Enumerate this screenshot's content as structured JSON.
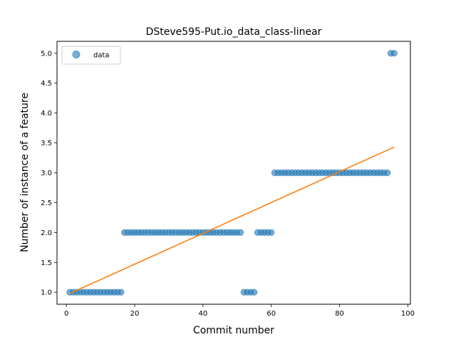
{
  "chart_data": {
    "type": "scatter",
    "title": "DSteve595-Put.io_data_class-linear",
    "xlabel": "Commit number",
    "ylabel": "Number of instance of a feature",
    "xlim": [
      -2.75,
      100.75
    ],
    "ylim": [
      0.8,
      5.2
    ],
    "xticks": [
      0,
      20,
      40,
      60,
      80,
      100
    ],
    "yticks": [
      1.0,
      1.5,
      2.0,
      2.5,
      3.0,
      3.5,
      4.0,
      4.5,
      5.0
    ],
    "xtick_labels": [
      "0",
      "20",
      "40",
      "60",
      "80",
      "100"
    ],
    "ytick_labels": [
      "1.0",
      "1.5",
      "2.0",
      "2.5",
      "3.0",
      "3.5",
      "4.0",
      "4.5",
      "5.0"
    ],
    "grid": false,
    "legend": {
      "entries": [
        "data"
      ],
      "placement": "top-left"
    },
    "series": [
      {
        "name": "data",
        "kind": "scatter",
        "color": "#1f77b4",
        "segments": [
          {
            "from": 1,
            "to": 16,
            "y": 1
          },
          {
            "from": 17,
            "to": 51,
            "y": 2
          },
          {
            "from": 52,
            "to": 55,
            "y": 1
          },
          {
            "from": 56,
            "to": 60,
            "y": 2
          },
          {
            "from": 61,
            "to": 94,
            "y": 3
          },
          {
            "from": 95,
            "to": 96,
            "y": 5
          }
        ]
      },
      {
        "kind": "line",
        "color": "#ff7f0e",
        "x": [
          1,
          96
        ],
        "y": [
          0.98,
          3.43
        ]
      }
    ]
  }
}
